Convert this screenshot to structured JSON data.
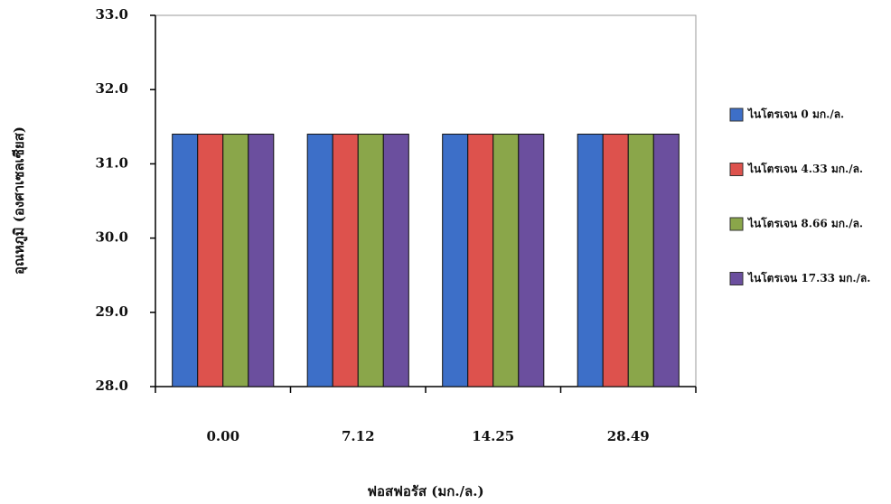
{
  "chart_data": {
    "type": "bar",
    "x_label": "ฟอสฟอรัส (มก./ล.)",
    "y_label": "อุณหภูมิ (องศาเซลเซียส)",
    "categories": [
      "0.00",
      "7.12",
      "14.25",
      "28.49"
    ],
    "series": [
      {
        "name": "ไนโตรเจน 0 มก./ล.",
        "color": "#3d6fc8",
        "values": [
          31.4,
          31.4,
          31.4,
          31.4
        ]
      },
      {
        "name": "ไนโตรเจน 4.33 มก./ล.",
        "color": "#dd524d",
        "values": [
          31.4,
          31.4,
          31.4,
          31.4
        ]
      },
      {
        "name": "ไนโตรเจน 8.66 มก./ล.",
        "color": "#8aa64a",
        "values": [
          31.4,
          31.4,
          31.4,
          31.4
        ]
      },
      {
        "name": "ไนโตรเจน 17.33 มก./ล.",
        "color": "#6b4f9e",
        "values": [
          31.4,
          31.4,
          31.4,
          31.4
        ]
      }
    ],
    "ylim": [
      28,
      33
    ],
    "yticks": [
      {
        "value": 28,
        "label": "28.0"
      },
      {
        "value": 29,
        "label": "29.0"
      },
      {
        "value": 30,
        "label": "30.0"
      },
      {
        "value": 31,
        "label": "31.0"
      },
      {
        "value": 32,
        "label": "32.0"
      },
      {
        "value": 33,
        "label": "33.0"
      }
    ],
    "legend": "right"
  }
}
